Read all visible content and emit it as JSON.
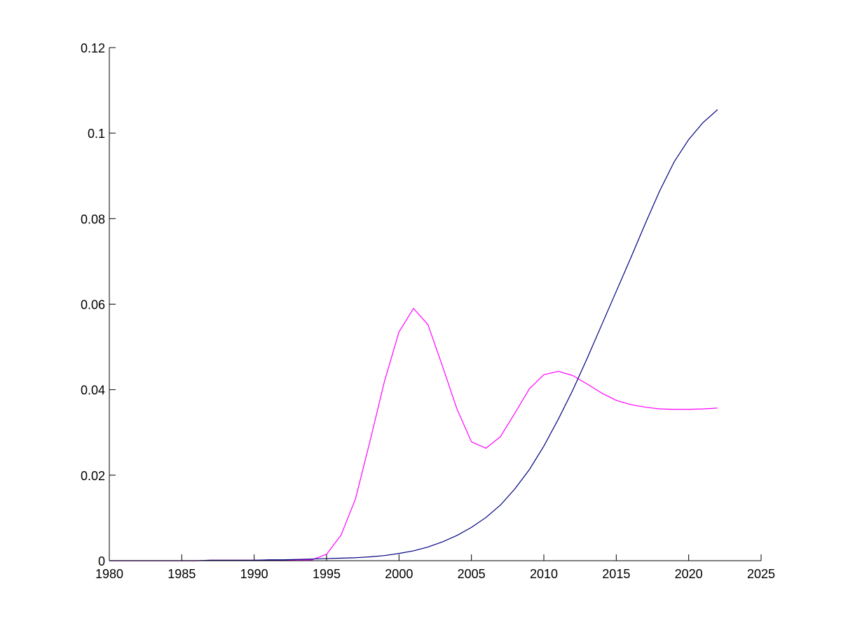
{
  "chart_data": {
    "type": "line",
    "title": "",
    "xlabel": "",
    "ylabel": "",
    "xlim": [
      1980,
      2025
    ],
    "ylim": [
      0,
      0.12
    ],
    "grid": false,
    "box": "left-bottom axes only",
    "xticks": [
      1980,
      1985,
      1990,
      1995,
      2000,
      2005,
      2010,
      2015,
      2020,
      2025
    ],
    "xtick_labels": [
      "1980",
      "1985",
      "1990",
      "1995",
      "2000",
      "2005",
      "2010",
      "2015",
      "2020",
      "2025"
    ],
    "yticks": [
      0,
      0.02,
      0.04,
      0.06,
      0.08,
      0.1,
      0.12
    ],
    "ytick_labels": [
      "0",
      "0.02",
      "0.04",
      "0.06",
      "0.08",
      "0.1",
      "0.12"
    ],
    "x": [
      1980,
      1981,
      1982,
      1983,
      1984,
      1985,
      1986,
      1987,
      1988,
      1989,
      1990,
      1991,
      1992,
      1993,
      1994,
      1995,
      1996,
      1997,
      1998,
      1999,
      2000,
      2001,
      2002,
      2003,
      2004,
      2005,
      2006,
      2007,
      2008,
      2009,
      2010,
      2011,
      2012,
      2013,
      2014,
      2015,
      2016,
      2017,
      2018,
      2019,
      2020,
      2021,
      2022
    ],
    "series": [
      {
        "color": "#ff00ff",
        "values": [
          0,
          0,
          0,
          0,
          0,
          0,
          0,
          0.0001,
          0.0001,
          0.0001,
          0.0001,
          0.0001,
          0.0001,
          0.0002,
          0.0002,
          0.0015,
          0.006,
          0.0145,
          0.028,
          0.042,
          0.0535,
          0.059,
          0.0552,
          0.0455,
          0.0355,
          0.0278,
          0.0263,
          0.029,
          0.0345,
          0.0402,
          0.0435,
          0.0443,
          0.0433,
          0.0413,
          0.0392,
          0.0375,
          0.0365,
          0.0359,
          0.0355,
          0.0354,
          0.0354,
          0.0355,
          0.0357
        ]
      },
      {
        "color": "#000080",
        "values": [
          0,
          0,
          0,
          0,
          0,
          0,
          0,
          0.0001,
          0.0001,
          0.0001,
          0.0001,
          0.0002,
          0.0002,
          0.0003,
          0.0004,
          0.0005,
          0.0006,
          0.0007,
          0.0009,
          0.0012,
          0.0017,
          0.0023,
          0.0032,
          0.0044,
          0.0059,
          0.0078,
          0.0101,
          0.013,
          0.0168,
          0.0213,
          0.0268,
          0.0331,
          0.0399,
          0.0474,
          0.0552,
          0.063,
          0.0708,
          0.0788,
          0.0865,
          0.0933,
          0.0985,
          0.1025,
          0.1055
        ]
      }
    ]
  }
}
